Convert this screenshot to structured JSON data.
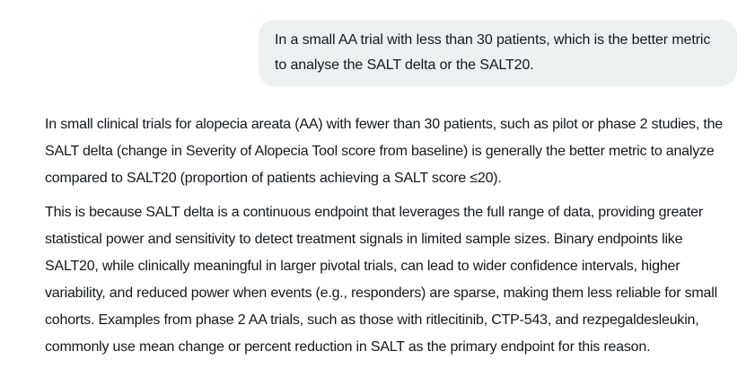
{
  "page": {
    "background_color": "#ffffff",
    "text_color": "#14181c"
  },
  "user_message": {
    "bubble_color": "#ecf0f1",
    "text": "In a small AA trial with less than 30 patients, which is the better metric to analyse the SALT delta or the SALT20."
  },
  "assistant": {
    "paragraphs": {
      "0": "In small clinical trials for alopecia areata (AA) with fewer than 30 patients, such as pilot or phase 2 studies, the SALT delta (change in Severity of Alopecia Tool score from baseline) is generally the better metric to analyze compared to SALT20 (proportion of patients achieving a SALT score ≤20).",
      "1": "This is because SALT delta is a continuous endpoint that leverages the full range of data, providing greater statistical power and sensitivity to detect treatment signals in limited sample sizes. Binary endpoints like SALT20, while clinically meaningful in larger pivotal trials, can lead to wider confidence intervals, higher variability, and reduced power when events (e.g., responders) are sparse, making them less reliable for small cohorts. Examples from phase 2 AA trials, such as those with ritlecitinib, CTP-543, and rezpegaldesleukin, commonly use mean change or percent reduction in SALT as the primary endpoint for this reason."
    }
  }
}
